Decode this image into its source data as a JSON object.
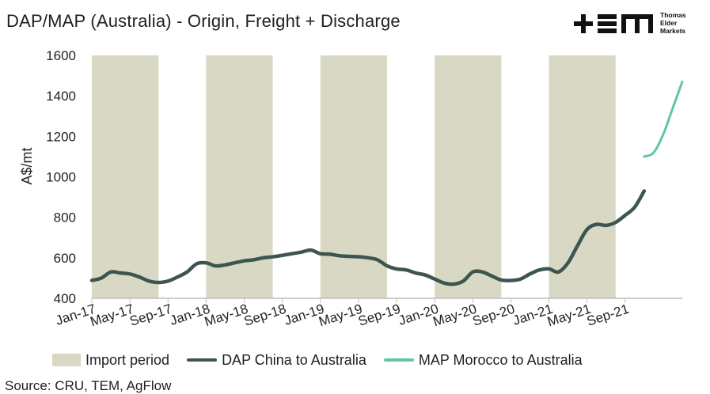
{
  "title": "DAP/MAP (Australia) - Origin, Freight + Discharge",
  "logo": {
    "mark": "+≡M",
    "line1": "Thomas",
    "line2": "Elder",
    "line3": "Markets"
  },
  "source": "Source: CRU, TEM, AgFlow",
  "colors": {
    "import_band": "#d8d8c4",
    "dap": "#3d5550",
    "map": "#62c6a0"
  },
  "chart_data": {
    "type": "line",
    "title": "DAP/MAP (Australia) - Origin, Freight + Discharge",
    "xlabel": "",
    "ylabel": "A$/mt",
    "ylim": [
      400,
      1600
    ],
    "yticks": [
      "400",
      "600",
      "800",
      "1000",
      "1200",
      "1400",
      "1600"
    ],
    "xticks": [
      "Jan-17",
      "May-17",
      "Sep-17",
      "Jan-18",
      "May-18",
      "Sep-18",
      "Jan-19",
      "May-19",
      "Sep-19",
      "Jan-20",
      "May-20",
      "Sep-20",
      "Jan-21",
      "May-21",
      "Sep-21"
    ],
    "grid": false,
    "legend_position": "bottom",
    "import_periods": {
      "label": "Import period",
      "ranges": [
        [
          "2017-01",
          "2017-08"
        ],
        [
          "2018-01",
          "2018-08"
        ],
        [
          "2019-01",
          "2019-08"
        ],
        [
          "2020-01",
          "2020-08"
        ],
        [
          "2021-01",
          "2021-08"
        ]
      ]
    },
    "series": [
      {
        "name": "DAP China to Australia",
        "x": [
          "2017-01",
          "2017-02",
          "2017-03",
          "2017-04",
          "2017-05",
          "2017-06",
          "2017-07",
          "2017-08",
          "2017-09",
          "2017-10",
          "2017-11",
          "2017-12",
          "2018-01",
          "2018-02",
          "2018-03",
          "2018-04",
          "2018-05",
          "2018-06",
          "2018-07",
          "2018-08",
          "2018-09",
          "2018-10",
          "2018-11",
          "2018-12",
          "2019-01",
          "2019-02",
          "2019-03",
          "2019-04",
          "2019-05",
          "2019-06",
          "2019-07",
          "2019-08",
          "2019-09",
          "2019-10",
          "2019-11",
          "2019-12",
          "2020-01",
          "2020-02",
          "2020-03",
          "2020-04",
          "2020-05",
          "2020-06",
          "2020-07",
          "2020-08",
          "2020-09",
          "2020-10",
          "2020-11",
          "2020-12",
          "2021-01",
          "2021-02",
          "2021-03",
          "2021-04",
          "2021-05",
          "2021-06",
          "2021-07",
          "2021-08",
          "2021-09",
          "2021-10",
          "2021-11"
        ],
        "values": [
          488,
          500,
          530,
          525,
          520,
          505,
          485,
          478,
          485,
          505,
          530,
          570,
          575,
          560,
          565,
          575,
          585,
          590,
          600,
          605,
          612,
          620,
          628,
          638,
          620,
          618,
          610,
          607,
          605,
          600,
          590,
          560,
          545,
          540,
          525,
          515,
          495,
          475,
          470,
          485,
          530,
          530,
          510,
          490,
          488,
          495,
          520,
          540,
          545,
          530,
          575,
          660,
          740,
          765,
          760,
          775,
          810,
          850,
          930
        ]
      },
      {
        "name": "MAP Morocco to Australia",
        "x": [
          "2021-11",
          "2021-12",
          "2022-01",
          "2022-02",
          "2022-03"
        ],
        "values": [
          1100,
          1120,
          1210,
          1340,
          1470
        ]
      }
    ]
  }
}
